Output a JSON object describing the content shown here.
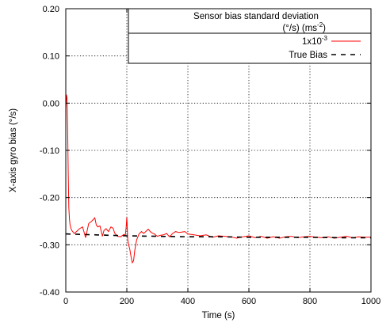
{
  "chart_data": {
    "type": "line",
    "xlabel": "Time (s)",
    "ylabel": "X-axis gyro bias (°/s)",
    "xlim": [
      0,
      1000
    ],
    "ylim": [
      -0.4,
      0.2
    ],
    "grid": true,
    "x_ticks": [
      0,
      200,
      400,
      600,
      800,
      1000
    ],
    "x_tick_labels": [
      "0",
      "200",
      "400",
      "600",
      "800",
      "1000"
    ],
    "y_ticks": [
      0.2,
      0.1,
      0.0,
      -0.1,
      -0.2,
      -0.3,
      -0.4
    ],
    "y_tick_labels": [
      "0.20",
      "0.10",
      "0.00",
      "-0.10",
      "-0.20",
      "-0.30",
      "-0.40"
    ],
    "legend": {
      "placement": "top-right",
      "title_line1": "Sensor bias standard deviation",
      "title_line2_base": "(°/s) (ms",
      "title_line2_sup": "-2",
      "title_line2_end": ")"
    },
    "series": [
      {
        "label_base": "1x10",
        "label_sup": "-3",
        "color": "#ff0000",
        "style": "solid",
        "x": [
          0,
          2,
          4,
          6,
          8,
          10,
          12,
          14,
          17,
          20,
          24,
          28,
          35,
          45,
          55,
          65,
          75,
          85,
          95,
          100,
          105,
          112,
          120,
          125,
          132,
          140,
          148,
          155,
          160,
          170,
          180,
          190,
          195,
          198,
          200,
          203,
          206,
          210,
          214,
          218,
          222,
          226,
          232,
          240,
          248,
          255,
          262,
          270,
          280,
          290,
          300,
          310,
          320,
          330,
          340,
          350,
          360,
          370,
          380,
          390,
          400,
          420,
          440,
          460,
          480,
          500,
          520,
          540,
          560,
          580,
          600,
          620,
          640,
          660,
          680,
          700,
          720,
          740,
          760,
          780,
          800,
          820,
          840,
          860,
          880,
          900,
          920,
          940,
          960,
          980,
          1000
        ],
        "y": [
          -0.01,
          0.018,
          0.012,
          -0.05,
          -0.15,
          -0.22,
          -0.245,
          -0.258,
          -0.265,
          -0.27,
          -0.273,
          -0.276,
          -0.272,
          -0.266,
          -0.262,
          -0.285,
          -0.255,
          -0.25,
          -0.243,
          -0.258,
          -0.262,
          -0.26,
          -0.282,
          -0.27,
          -0.266,
          -0.272,
          -0.262,
          -0.265,
          -0.275,
          -0.282,
          -0.283,
          -0.278,
          -0.28,
          -0.262,
          -0.242,
          -0.29,
          -0.3,
          -0.31,
          -0.326,
          -0.338,
          -0.334,
          -0.312,
          -0.29,
          -0.277,
          -0.272,
          -0.276,
          -0.272,
          -0.267,
          -0.274,
          -0.277,
          -0.282,
          -0.28,
          -0.279,
          -0.276,
          -0.283,
          -0.276,
          -0.272,
          -0.274,
          -0.273,
          -0.272,
          -0.277,
          -0.279,
          -0.281,
          -0.279,
          -0.284,
          -0.281,
          -0.282,
          -0.283,
          -0.286,
          -0.283,
          -0.281,
          -0.285,
          -0.282,
          -0.286,
          -0.283,
          -0.286,
          -0.283,
          -0.282,
          -0.285,
          -0.283,
          -0.282,
          -0.284,
          -0.285,
          -0.283,
          -0.286,
          -0.284,
          -0.282,
          -0.285,
          -0.283,
          -0.284,
          -0.284
        ]
      },
      {
        "label_base": "True Bias",
        "label_sup": "",
        "color": "#000000",
        "style": "dashed",
        "x": [
          0,
          100,
          200,
          300,
          400,
          500,
          600,
          700,
          800,
          900,
          1000
        ],
        "y": [
          -0.277,
          -0.279,
          -0.281,
          -0.282,
          -0.283,
          -0.283,
          -0.284,
          -0.284,
          -0.284,
          -0.285,
          -0.285
        ]
      }
    ]
  }
}
